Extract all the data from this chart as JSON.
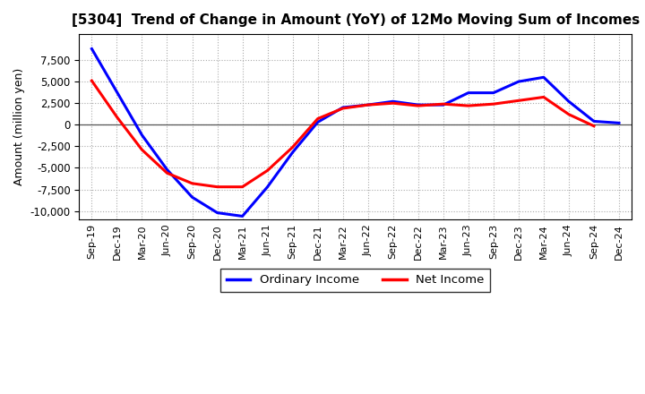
{
  "title": "[5304]  Trend of Change in Amount (YoY) of 12Mo Moving Sum of Incomes",
  "ylabel": "Amount (million yen)",
  "x_labels": [
    "Sep-19",
    "Dec-19",
    "Mar-20",
    "Jun-20",
    "Sep-20",
    "Dec-20",
    "Mar-21",
    "Jun-21",
    "Sep-21",
    "Dec-21",
    "Mar-22",
    "Jun-22",
    "Sep-22",
    "Dec-22",
    "Mar-23",
    "Jun-23",
    "Sep-23",
    "Dec-23",
    "Mar-24",
    "Jun-24",
    "Sep-24",
    "Dec-24"
  ],
  "ordinary_income": [
    8800,
    3800,
    -1200,
    -5200,
    -8400,
    -10200,
    -10600,
    -7200,
    -3200,
    300,
    2000,
    2300,
    2700,
    2300,
    2300,
    3700,
    3700,
    5000,
    5500,
    2700,
    400,
    200
  ],
  "net_income": [
    5100,
    900,
    -2900,
    -5600,
    -6800,
    -7200,
    -7200,
    -5300,
    -2600,
    700,
    1900,
    2300,
    2500,
    2200,
    2400,
    2200,
    2400,
    2800,
    3200,
    1200,
    -150,
    null
  ],
  "ordinary_color": "#0000FF",
  "net_color": "#FF0000",
  "bg_color": "#FFFFFF",
  "plot_bg_color": "#FFFFFF",
  "ylim": [
    -11000,
    10500
  ],
  "yticks": [
    -10000,
    -7500,
    -5000,
    -2500,
    0,
    2500,
    5000,
    7500
  ],
  "legend_labels": [
    "Ordinary Income",
    "Net Income"
  ],
  "line_width": 2.2
}
